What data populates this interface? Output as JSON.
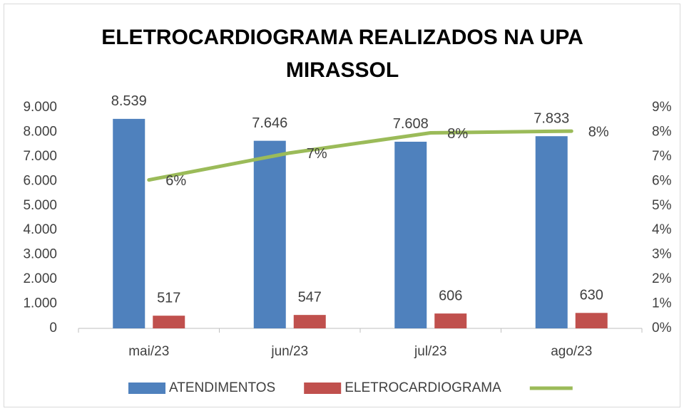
{
  "chart_data": {
    "type": "bar",
    "title": "ELETROCARDIOGRAMA REALIZADOS NA UPA MIRASSOL",
    "categories": [
      "mai/23",
      "jun/23",
      "jul/23",
      "ago/23"
    ],
    "series": [
      {
        "name": "ATENDIMENTOS",
        "type": "bar",
        "color": "#4f81bd",
        "values": [
          8539,
          7646,
          7608,
          7833
        ],
        "value_labels": [
          "8.539",
          "7.646",
          "7.608",
          "7.833"
        ]
      },
      {
        "name": "ELETROCARDIOGRAMA",
        "type": "bar",
        "color": "#c0504d",
        "values": [
          517,
          547,
          606,
          630
        ]
      },
      {
        "type": "line",
        "axis": "y2",
        "color": "#9bbb59",
        "values": [
          6.05,
          7.15,
          7.97,
          8.04
        ],
        "value_labels": [
          "6%",
          "7%",
          "8%",
          "8%"
        ]
      }
    ],
    "ylim": [
      0,
      9000
    ],
    "yticks": [
      0,
      {
        "value": 1000,
        "label": "1.000"
      },
      {
        "value": 2000,
        "label": "2.000"
      },
      {
        "value": 3000,
        "label": "3.000"
      },
      {
        "value": 4000,
        "label": "4.000"
      },
      {
        "value": 5000,
        "label": "5.000"
      },
      {
        "value": 6000,
        "label": "6.000"
      },
      {
        "value": 7000,
        "label": "7.000"
      },
      {
        "value": 8000,
        "label": "8.000"
      },
      {
        "value": 9000,
        "label": "9.000"
      }
    ],
    "y2lim": [
      0,
      9
    ],
    "y2ticks": [
      {
        "value": 0,
        "label": "0%"
      },
      {
        "value": 1,
        "label": "1%"
      },
      {
        "value": 2,
        "label": "2%"
      },
      {
        "value": 3,
        "label": "3%"
      },
      {
        "value": 4,
        "label": "4%"
      },
      {
        "value": 5,
        "label": "5%"
      },
      {
        "value": 6,
        "label": "6%"
      },
      {
        "value": 7,
        "label": "7%"
      },
      {
        "value": 8,
        "label": "8%"
      },
      {
        "value": 9,
        "label": "9%"
      }
    ],
    "grid": false,
    "legend": "bottom"
  }
}
